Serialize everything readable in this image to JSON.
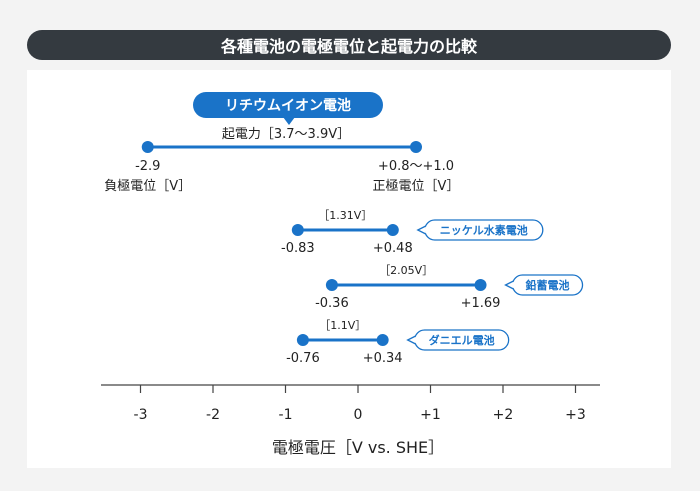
{
  "title": "各種電池の電極電位と起電力の比較",
  "colors": {
    "accent": "#1a73c8",
    "title_bg": "#343a40",
    "text": "#222222"
  },
  "chart_data": {
    "type": "range",
    "title": "各種電池の電極電位と起電力の比較",
    "xlabel": "電極電圧［V vs. SHE］",
    "xlim": [
      -3.6,
      3.3
    ],
    "xticks": [
      -3,
      -2,
      -1,
      0,
      1,
      2,
      3
    ],
    "xtick_labels": [
      "-3",
      "-2",
      "-1",
      "0",
      "+1",
      "+2",
      "+3"
    ],
    "batteries": [
      {
        "name": "リチウムイオン電池",
        "neg": -2.9,
        "pos": 0.8,
        "neg_label": "-2.9",
        "pos_label": "+0.8〜+1.0",
        "emf_label": "起電力［3.7〜3.9V］",
        "neg_desc": "負極電位［V］",
        "pos_desc": "正極電位［V］"
      },
      {
        "name": "ニッケル水素電池",
        "neg": -0.83,
        "pos": 0.48,
        "neg_label": "-0.83",
        "pos_label": "+0.48",
        "emf_label": "［1.31V］"
      },
      {
        "name": "鉛蓄電池",
        "neg": -0.36,
        "pos": 1.69,
        "neg_label": "-0.36",
        "pos_label": "+1.69",
        "emf_label": "［2.05V］"
      },
      {
        "name": "ダニエル電池",
        "neg": -0.76,
        "pos": 0.34,
        "neg_label": "-0.76",
        "pos_label": "+0.34",
        "emf_label": "［1.1V］"
      }
    ]
  }
}
